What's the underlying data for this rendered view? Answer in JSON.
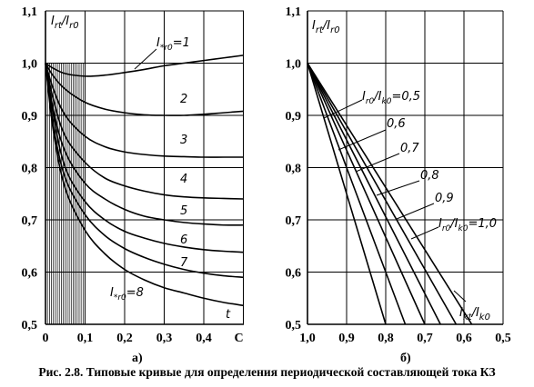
{
  "caption": "Рис. 2.8. Типовые кривые для определения периодической составляющей тока КЗ",
  "chart_data": [
    {
      "type": "line",
      "panel_label": "а)",
      "ylabel": "I_rt/I_r0",
      "xlabel_end": "t",
      "xlim": [
        0,
        0.5
      ],
      "ylim": [
        0.5,
        1.1
      ],
      "x_tick_labels": [
        "0",
        "0,1",
        "0,2",
        "0,3",
        "0,4",
        "С"
      ],
      "y_tick_labels": [
        "0,5",
        "0,6",
        "0,7",
        "0,8",
        "0,9",
        "1,0",
        "1,1"
      ],
      "grid": true,
      "series": [
        {
          "name": "I*r0=1",
          "label": "I*r0=1",
          "x": [
            0,
            0.02,
            0.05,
            0.1,
            0.15,
            0.2,
            0.25,
            0.3,
            0.35,
            0.4,
            0.45,
            0.5
          ],
          "y": [
            1.0,
            0.99,
            0.98,
            0.975,
            0.977,
            0.982,
            0.988,
            0.995,
            1.0,
            1.005,
            1.01,
            1.015
          ]
        },
        {
          "name": "2",
          "label": "2",
          "x": [
            0,
            0.02,
            0.05,
            0.1,
            0.15,
            0.2,
            0.25,
            0.3,
            0.35,
            0.4,
            0.45,
            0.5
          ],
          "y": [
            1.0,
            0.975,
            0.95,
            0.925,
            0.912,
            0.905,
            0.901,
            0.9,
            0.9,
            0.902,
            0.905,
            0.908
          ]
        },
        {
          "name": "3",
          "label": "3",
          "x": [
            0,
            0.02,
            0.05,
            0.1,
            0.15,
            0.2,
            0.25,
            0.3,
            0.35,
            0.4,
            0.45,
            0.5
          ],
          "y": [
            1.0,
            0.95,
            0.9,
            0.86,
            0.84,
            0.83,
            0.825,
            0.822,
            0.821,
            0.82,
            0.82,
            0.82
          ]
        },
        {
          "name": "4",
          "label": "4",
          "x": [
            0,
            0.02,
            0.05,
            0.1,
            0.15,
            0.2,
            0.25,
            0.3,
            0.35,
            0.4,
            0.45,
            0.5
          ],
          "y": [
            1.0,
            0.93,
            0.86,
            0.81,
            0.78,
            0.765,
            0.755,
            0.748,
            0.744,
            0.742,
            0.741,
            0.74
          ]
        },
        {
          "name": "5",
          "label": "5",
          "x": [
            0,
            0.02,
            0.05,
            0.1,
            0.15,
            0.2,
            0.25,
            0.3,
            0.35,
            0.4,
            0.45,
            0.5
          ],
          "y": [
            1.0,
            0.91,
            0.83,
            0.77,
            0.74,
            0.72,
            0.707,
            0.7,
            0.695,
            0.692,
            0.69,
            0.69
          ]
        },
        {
          "name": "6",
          "label": "6",
          "x": [
            0,
            0.02,
            0.05,
            0.1,
            0.15,
            0.2,
            0.25,
            0.3,
            0.35,
            0.4,
            0.45,
            0.5
          ],
          "y": [
            1.0,
            0.9,
            0.8,
            0.735,
            0.7,
            0.678,
            0.665,
            0.655,
            0.648,
            0.643,
            0.64,
            0.638
          ]
        },
        {
          "name": "7",
          "label": "7",
          "x": [
            0,
            0.02,
            0.05,
            0.1,
            0.15,
            0.2,
            0.25,
            0.3,
            0.35,
            0.4,
            0.45,
            0.5
          ],
          "y": [
            1.0,
            0.88,
            0.78,
            0.71,
            0.67,
            0.645,
            0.628,
            0.615,
            0.605,
            0.598,
            0.593,
            0.59
          ]
        },
        {
          "name": "I*r0=8",
          "label": "I*r0=8",
          "x": [
            0,
            0.02,
            0.05,
            0.1,
            0.15,
            0.2,
            0.25,
            0.3,
            0.35,
            0.4,
            0.45,
            0.5
          ],
          "y": [
            1.0,
            0.87,
            0.76,
            0.68,
            0.635,
            0.605,
            0.585,
            0.57,
            0.56,
            0.55,
            0.542,
            0.536
          ]
        }
      ]
    },
    {
      "type": "line",
      "panel_label": "б)",
      "ylabel": "I_rt/I_r0",
      "xlabel": "I_kt/I_k0",
      "xlim": [
        1.0,
        0.5
      ],
      "ylim": [
        0.5,
        1.1
      ],
      "x_tick_labels": [
        "1,0",
        "0,9",
        "0,8",
        "0,7",
        "0,6",
        "0,5"
      ],
      "y_tick_labels": [
        "0,5",
        "0,6",
        "0,7",
        "0,8",
        "0,9",
        "1,0",
        "1,1"
      ],
      "grid": true,
      "series": [
        {
          "name": "I_r0/I_k0=0,5",
          "label": "I_r0/I_k0=0,5",
          "x": [
            1.0,
            0.8
          ],
          "y": [
            1.0,
            0.5
          ]
        },
        {
          "name": "0,6",
          "label": "0,6",
          "x": [
            1.0,
            0.75
          ],
          "y": [
            1.0,
            0.5
          ]
        },
        {
          "name": "0,7",
          "label": "0,7",
          "x": [
            1.0,
            0.7
          ],
          "y": [
            1.0,
            0.5
          ]
        },
        {
          "name": "0,8",
          "label": "0,8",
          "x": [
            1.0,
            0.66
          ],
          "y": [
            1.0,
            0.5
          ]
        },
        {
          "name": "0,9",
          "label": "0,9",
          "x": [
            1.0,
            0.62
          ],
          "y": [
            1.0,
            0.5
          ]
        },
        {
          "name": "I_r0/I_k0=1,0",
          "label": "I_r0/I_k0=1,0",
          "x": [
            1.0,
            0.58
          ],
          "y": [
            1.0,
            0.5
          ]
        }
      ]
    }
  ]
}
